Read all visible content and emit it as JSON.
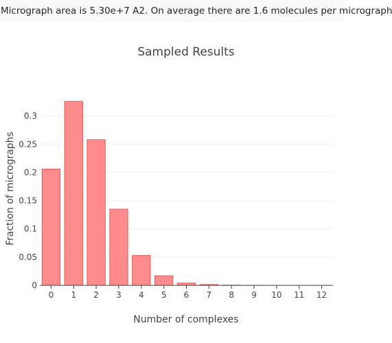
{
  "info": {
    "text": "Micrograph area is 5.30e+7 A2. On average there are 1.6 molecules per micrograph"
  },
  "chart_data": {
    "type": "bar",
    "title": "Sampled Results",
    "xlabel": "Number of complexes",
    "ylabel": "Fraction of micrographs",
    "categories": [
      "0",
      "1",
      "2",
      "3",
      "4",
      "5",
      "6",
      "7",
      "8",
      "9",
      "10",
      "11",
      "12"
    ],
    "values": [
      0.206,
      0.326,
      0.258,
      0.135,
      0.053,
      0.017,
      0.004,
      0.0015,
      0.0005,
      0.0002,
      0.0001,
      0.0001,
      0.0001
    ],
    "ylim": [
      0,
      0.35
    ],
    "yticks": [
      0,
      0.05,
      0.1,
      0.15,
      0.2,
      0.25,
      0.3
    ],
    "ytick_labels": [
      "0",
      "0.05",
      "0.1",
      "0.15",
      "0.2",
      "0.25",
      "0.3"
    ],
    "grid": true,
    "colors": {
      "bar_fill": "#ff8c8c",
      "bar_stroke": "#e05a5a",
      "grid": "#eeeeee",
      "axis": "#444444"
    }
  }
}
